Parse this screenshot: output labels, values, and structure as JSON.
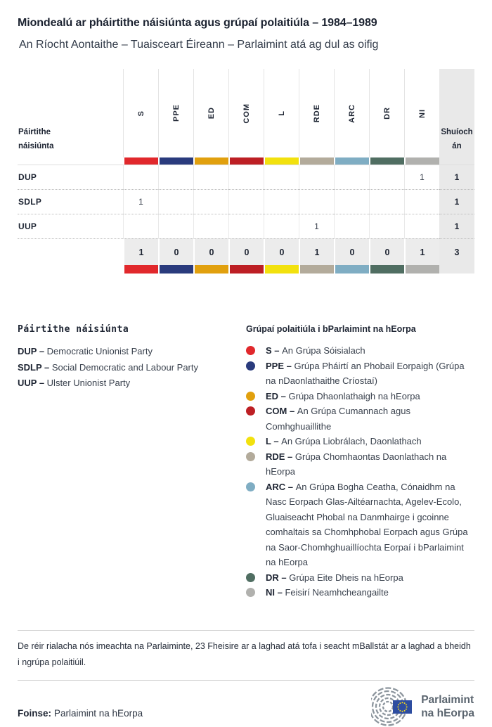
{
  "header": {
    "title": "Miondealú ar pháirtithe náisiúnta agus grúpaí polaitiúla – 1984–1989",
    "subtitle": "An Ríocht Aontaithe – Tuaisceart Éireann – Parlaimint atá ag dul as oifig"
  },
  "table": {
    "row_header_label": "Páirtithe\nnáisiúnta",
    "seats_label": "Shuíochán",
    "seat_column_bg": "#e9e9e9",
    "totals_row_bg": "#ececec",
    "groups": [
      {
        "code": "S",
        "color": "#e1282c"
      },
      {
        "code": "PPE",
        "color": "#2a3b7d"
      },
      {
        "code": "ED",
        "color": "#e1a00e"
      },
      {
        "code": "COM",
        "color": "#bd1f24"
      },
      {
        "code": "L",
        "color": "#f2e10e"
      },
      {
        "code": "RDE",
        "color": "#b3ab9b"
      },
      {
        "code": "ARC",
        "color": "#7fadc3"
      },
      {
        "code": "DR",
        "color": "#506e62"
      },
      {
        "code": "NI",
        "color": "#b1b1ae"
      }
    ],
    "rows": [
      {
        "party": "DUP",
        "values": [
          "",
          "",
          "",
          "",
          "",
          "",
          "",
          "",
          "1"
        ],
        "seats": "1"
      },
      {
        "party": "SDLP",
        "values": [
          "1",
          "",
          "",
          "",
          "",
          "",
          "",
          "",
          ""
        ],
        "seats": "1"
      },
      {
        "party": "UUP",
        "values": [
          "",
          "",
          "",
          "",
          "",
          "1",
          "",
          "",
          ""
        ],
        "seats": "1"
      }
    ],
    "totals": {
      "values": [
        "1",
        "0",
        "0",
        "0",
        "0",
        "1",
        "0",
        "0",
        "1"
      ],
      "seats": "3"
    }
  },
  "chart_data": {
    "type": "table",
    "title": "Miondealú ar pháirtithe náisiúnta agus grúpaí polaitiúla – 1984–1989",
    "subtitle": "An Ríocht Aontaithe – Tuaisceart Éireann – Parlaimint atá ag dul as oifig",
    "columns": [
      "S",
      "PPE",
      "ED",
      "COM",
      "L",
      "RDE",
      "ARC",
      "DR",
      "NI",
      "Shuíochán"
    ],
    "rows": [
      {
        "party": "DUP",
        "values": [
          0,
          0,
          0,
          0,
          0,
          0,
          0,
          0,
          1
        ],
        "seats": 1
      },
      {
        "party": "SDLP",
        "values": [
          1,
          0,
          0,
          0,
          0,
          0,
          0,
          0,
          0
        ],
        "seats": 1
      },
      {
        "party": "UUP",
        "values": [
          0,
          0,
          0,
          0,
          0,
          1,
          0,
          0,
          0
        ],
        "seats": 1
      }
    ],
    "totals": {
      "values": [
        1,
        0,
        0,
        0,
        0,
        1,
        0,
        0,
        1
      ],
      "seats": 3
    }
  },
  "legend_parties": {
    "heading": "Páirtithe náisiúnta",
    "separator": "–",
    "items": [
      {
        "abbr": "DUP",
        "name": "Democratic Unionist Party"
      },
      {
        "abbr": "SDLP",
        "name": "Social Democratic and Labour Party"
      },
      {
        "abbr": "UUP",
        "name": "Ulster Unionist Party"
      }
    ]
  },
  "legend_groups": {
    "heading": "Grúpaí polaitiúla i bParlaimint na hEorpa",
    "separator": "–",
    "items": [
      {
        "abbr": "S",
        "color": "#e1282c",
        "name": "An Grúpa Sóisialach"
      },
      {
        "abbr": "PPE",
        "color": "#2a3b7d",
        "name": "Grúpa Pháirtí an Phobail Eorpaigh (Grúpa na nDaonlathaithe Críostaí)"
      },
      {
        "abbr": "ED",
        "color": "#e1a00e",
        "name": "Grúpa Dhaonlathaigh na hEorpa"
      },
      {
        "abbr": "COM",
        "color": "#bd1f24",
        "name": "An Grúpa Cumannach agus Comhghuaillithe"
      },
      {
        "abbr": "L",
        "color": "#f2e10e",
        "name": "An Grúpa Liobrálach, Daonlathach"
      },
      {
        "abbr": "RDE",
        "color": "#b3ab9b",
        "name": "Grúpa Chomhaontas Daonlathach na hEorpa"
      },
      {
        "abbr": "ARC",
        "color": "#7fadc3",
        "name": "An Grúpa Bogha Ceatha, Cónaidhm na Nasc Eorpach Glas-Ailtéarnachta, Agelev-Ecolo, Gluaiseacht Phobal na Danmhairge i gcoinne comhaltais sa Chomhphobal Eorpach agus Grúpa na Saor-Chomhghuaillíochta Eorpaí i bParlaimint na hEorpa"
      },
      {
        "abbr": "DR",
        "color": "#506e62",
        "name": "Grúpa Eite Dheis na hEorpa"
      },
      {
        "abbr": "NI",
        "color": "#b1b1ae",
        "name": "Feisirí Neamhcheangailte"
      }
    ]
  },
  "footnote": "De réir rialacha nós imeachta na Parlaiminte, 23 Fheisire ar a laghad atá tofa i seacht mBallstát ar a laghad a bheidh i ngrúpa polaitiúil.",
  "source": {
    "label": "Foinse:",
    "text": "Parlaimint na hEorpa"
  },
  "logo": {
    "line1": "Parlaimint",
    "line2": "na hEorpa",
    "flag_blue": "#2d4da0",
    "star_yellow": "#f7d917",
    "arc_gray": "#8d969e"
  }
}
